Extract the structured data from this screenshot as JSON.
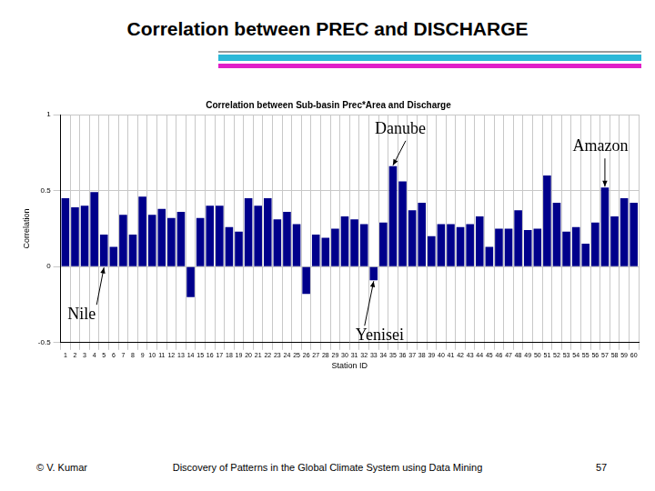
{
  "header": {
    "title": "Correlation between PREC and DISCHARGE"
  },
  "chart_data": {
    "type": "bar",
    "title": "Correlation between Sub-basin Prec*Area and Discharge",
    "x_label": "Station ID",
    "y_label": "Correlation",
    "categories": [
      1,
      2,
      3,
      4,
      5,
      6,
      7,
      8,
      9,
      10,
      11,
      12,
      13,
      14,
      15,
      16,
      17,
      18,
      19,
      20,
      21,
      22,
      23,
      24,
      25,
      26,
      27,
      28,
      29,
      30,
      31,
      32,
      33,
      34,
      35,
      36,
      37,
      38,
      39,
      40,
      41,
      42,
      43,
      44,
      45,
      46,
      47,
      48,
      49,
      50,
      51,
      52,
      53,
      54,
      55,
      56,
      57,
      58,
      59,
      60
    ],
    "values": [
      0.45,
      0.39,
      0.4,
      0.49,
      0.21,
      0.13,
      0.34,
      0.21,
      0.46,
      0.34,
      0.38,
      0.32,
      0.36,
      -0.2,
      0.32,
      0.4,
      0.4,
      0.26,
      0.23,
      0.45,
      0.4,
      0.45,
      0.31,
      0.36,
      0.28,
      -0.18,
      0.21,
      0.19,
      0.25,
      0.33,
      0.31,
      0.28,
      -0.09,
      0.29,
      0.66,
      0.56,
      0.37,
      0.42,
      0.2,
      0.28,
      0.28,
      0.26,
      0.28,
      0.33,
      0.13,
      0.25,
      0.25,
      0.37,
      0.24,
      0.25,
      0.6,
      0.42,
      0.23,
      0.26,
      0.15,
      0.29,
      0.52,
      0.33,
      0.45,
      0.42
    ],
    "color": "#00008b",
    "ylim": [
      -0.5,
      1
    ],
    "yticks": [
      -0.5,
      0,
      0.5,
      1
    ],
    "grid": true,
    "annotations": [
      {
        "text": "Nile",
        "station": 5
      },
      {
        "text": "Yenisei",
        "station": 33
      },
      {
        "text": "Danube",
        "station": 35
      },
      {
        "text": "Amazon",
        "station": 57
      }
    ]
  },
  "footer": {
    "author": "© V. Kumar",
    "text": "Discovery of Patterns in the Global Climate System using Data Mining",
    "page": "57"
  }
}
